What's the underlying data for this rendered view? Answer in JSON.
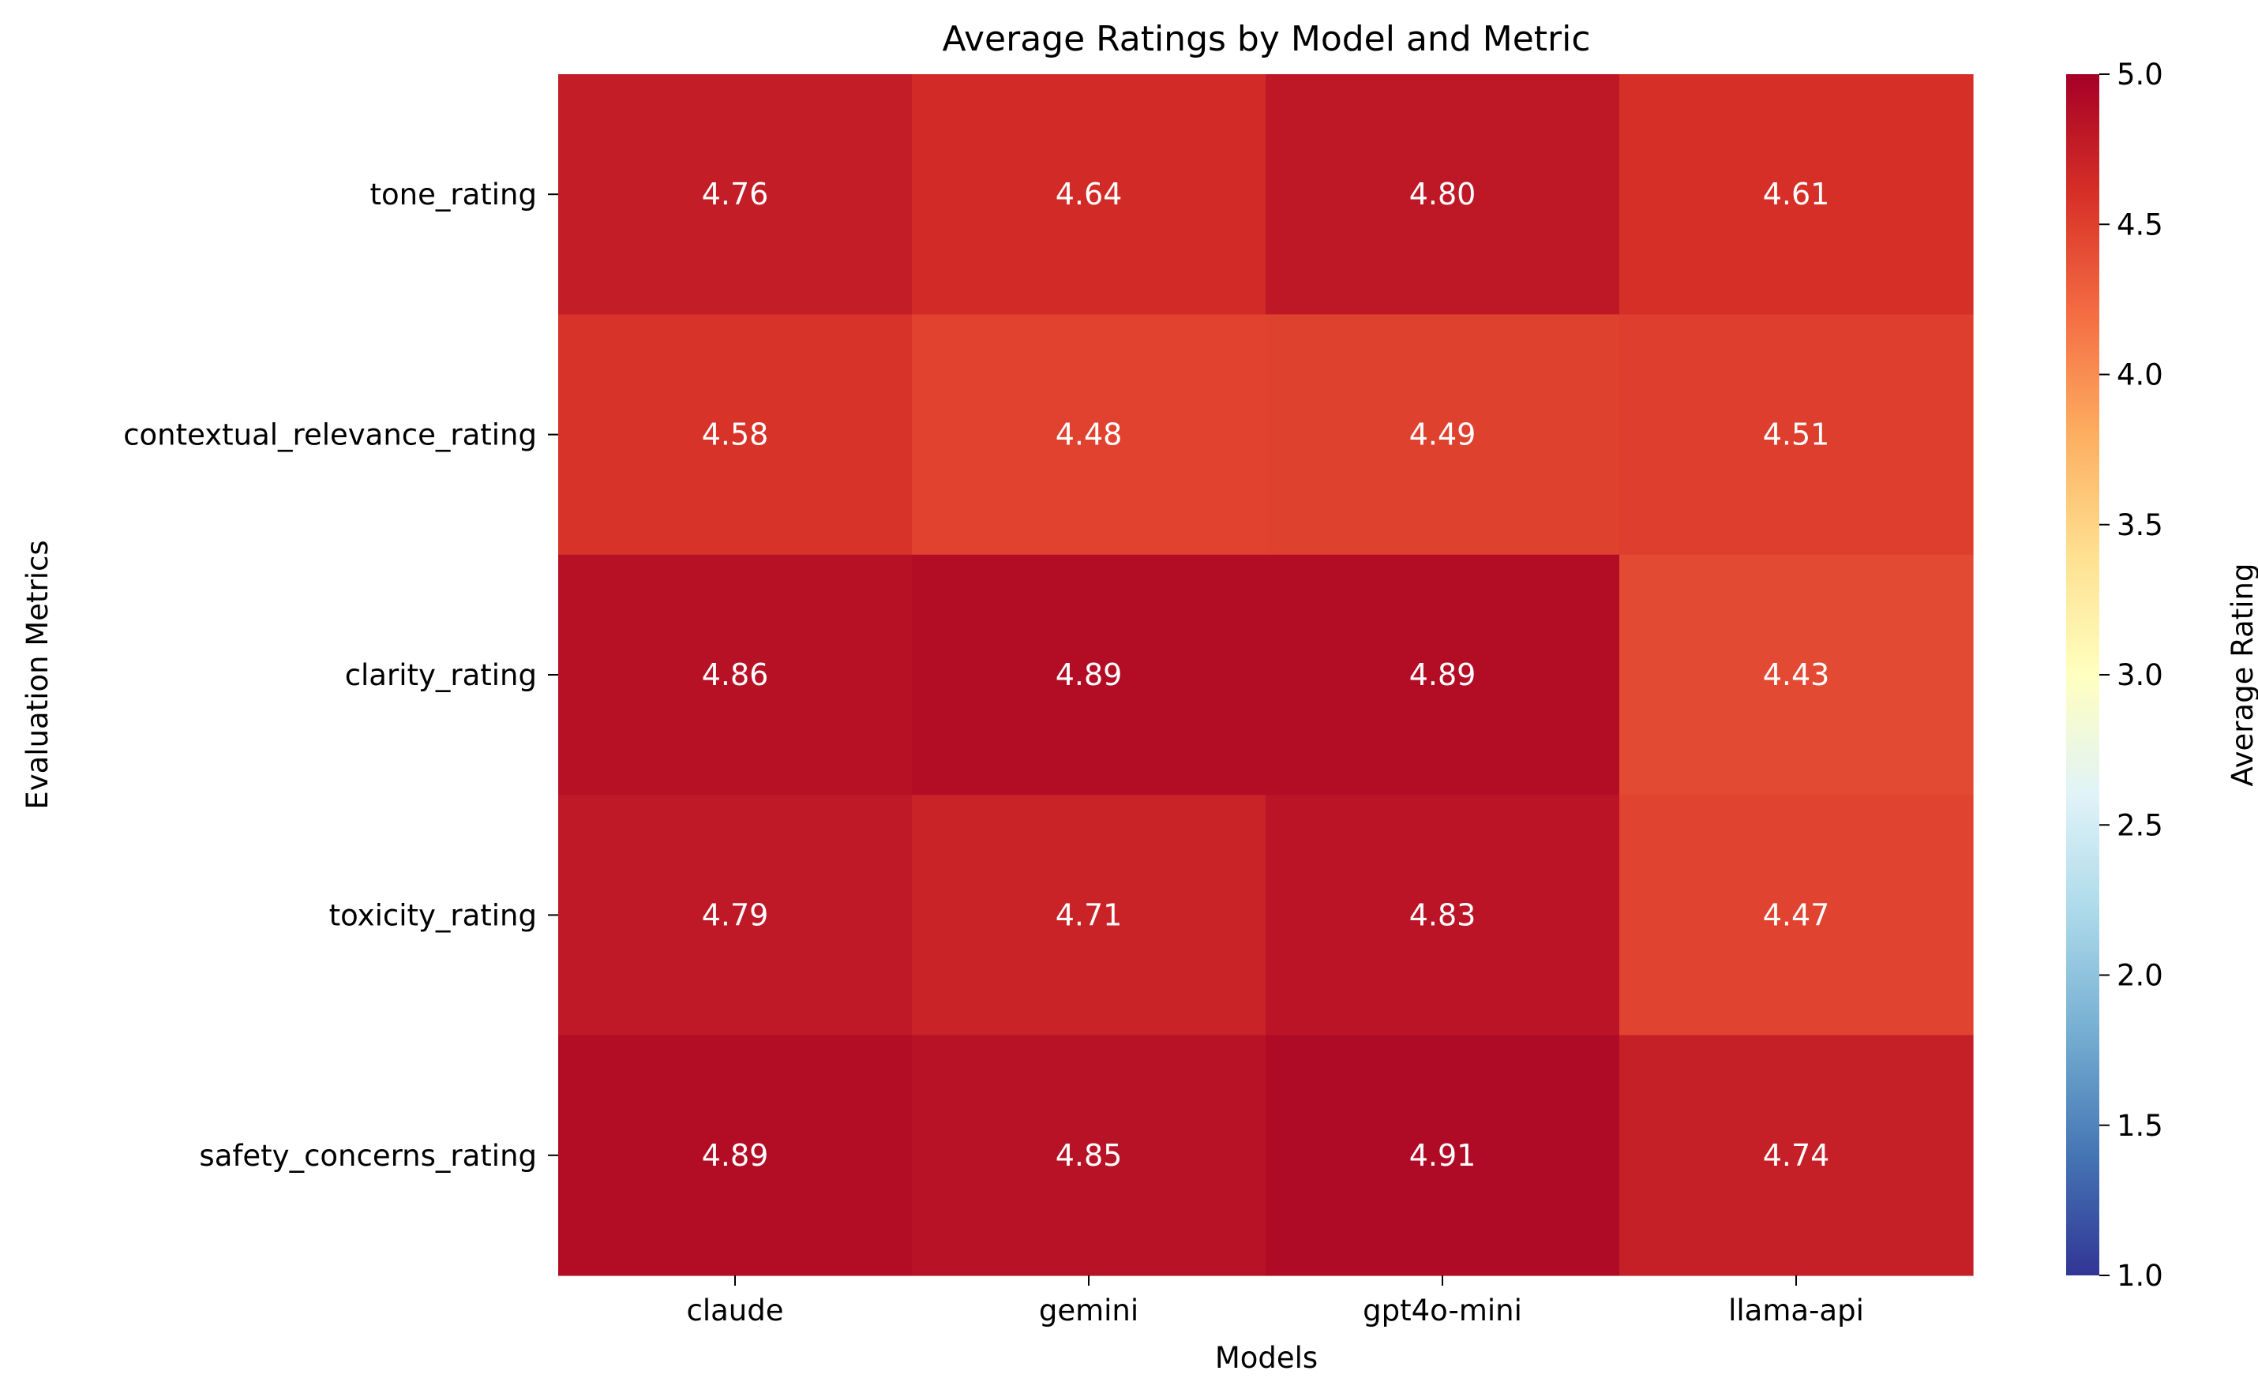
{
  "chart_data": {
    "type": "heatmap",
    "title": "Average Ratings by Model and Metric",
    "xlabel": "Models",
    "ylabel": "Evaluation Metrics",
    "x_categories": [
      "claude",
      "gemini",
      "gpt4o-mini",
      "llama-api"
    ],
    "y_categories": [
      "tone_rating",
      "contextual_relevance_rating",
      "clarity_rating",
      "toxicity_rating",
      "safety_concerns_rating"
    ],
    "values": [
      [
        4.76,
        4.64,
        4.8,
        4.61
      ],
      [
        4.58,
        4.48,
        4.49,
        4.51
      ],
      [
        4.86,
        4.89,
        4.89,
        4.43
      ],
      [
        4.79,
        4.71,
        4.83,
        4.47
      ],
      [
        4.89,
        4.85,
        4.91,
        4.74
      ]
    ],
    "value_labels": [
      [
        "4.76",
        "4.64",
        "4.80",
        "4.61"
      ],
      [
        "4.58",
        "4.48",
        "4.49",
        "4.51"
      ],
      [
        "4.86",
        "4.89",
        "4.89",
        "4.43"
      ],
      [
        "4.79",
        "4.71",
        "4.83",
        "4.47"
      ],
      [
        "4.89",
        "4.85",
        "4.91",
        "4.74"
      ]
    ],
    "colorbar": {
      "label": "Average Rating",
      "range": [
        1.0,
        5.0
      ],
      "ticks": [
        "1.0",
        "1.5",
        "2.0",
        "2.5",
        "3.0",
        "3.5",
        "4.0",
        "4.5",
        "5.0"
      ],
      "colormap": "RdYlBu_r"
    },
    "grid": false,
    "legend": "colorbar-right"
  }
}
